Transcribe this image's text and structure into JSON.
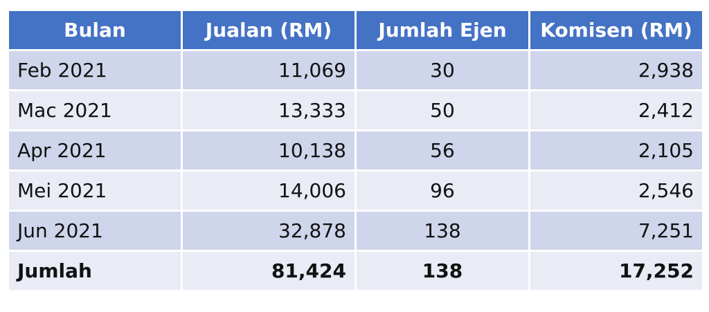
{
  "table": {
    "header": [
      "Bulan",
      "Jualan (RM)",
      "Jumlah Ejen",
      "Komisen (RM)"
    ],
    "rows": [
      [
        "Feb 2021",
        "11,069",
        "30",
        "2,938"
      ],
      [
        "Mac 2021",
        "13,333",
        "50",
        "2,412"
      ],
      [
        "Apr 2021",
        "10,138",
        "56",
        "2,105"
      ],
      [
        "Mei 2021",
        "14,006",
        "96",
        "2,546"
      ],
      [
        "Jun 2021",
        "32,878",
        "138",
        "7,251"
      ]
    ],
    "total": [
      "Jumlah",
      "81,424",
      "138",
      "17,252"
    ]
  }
}
